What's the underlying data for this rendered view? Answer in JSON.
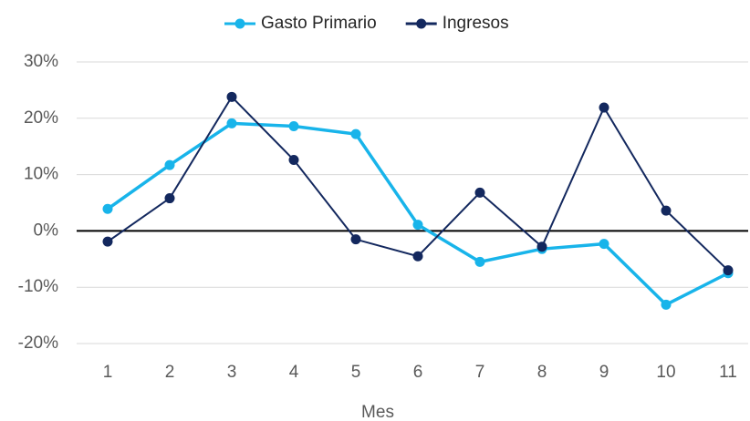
{
  "chart_data": {
    "type": "line",
    "x_label": "Mes",
    "categories": [
      "1",
      "2",
      "3",
      "4",
      "5",
      "6",
      "7",
      "8",
      "9",
      "10",
      "11"
    ],
    "series": [
      {
        "name": "Gasto Primario",
        "color": "#18b4ea",
        "values": [
          3.9,
          11.7,
          19.1,
          18.6,
          17.2,
          1.1,
          -5.5,
          -3.2,
          -2.3,
          -13.1,
          -7.5
        ]
      },
      {
        "name": "Ingresos",
        "color": "#13285e",
        "values": [
          -1.9,
          5.8,
          23.8,
          12.6,
          -1.5,
          -4.5,
          6.8,
          -2.8,
          21.9,
          3.6,
          -7.0
        ]
      }
    ],
    "ylim": [
      -20,
      30
    ],
    "yticks": [
      {
        "value": -20,
        "label": "-20%"
      },
      {
        "value": -10,
        "label": "-10%"
      },
      {
        "value": 0,
        "label": "0%"
      },
      {
        "value": 10,
        "label": "10%"
      },
      {
        "value": 20,
        "label": "20%"
      },
      {
        "value": 30,
        "label": "30%"
      }
    ],
    "grid": true,
    "legend": "top"
  }
}
